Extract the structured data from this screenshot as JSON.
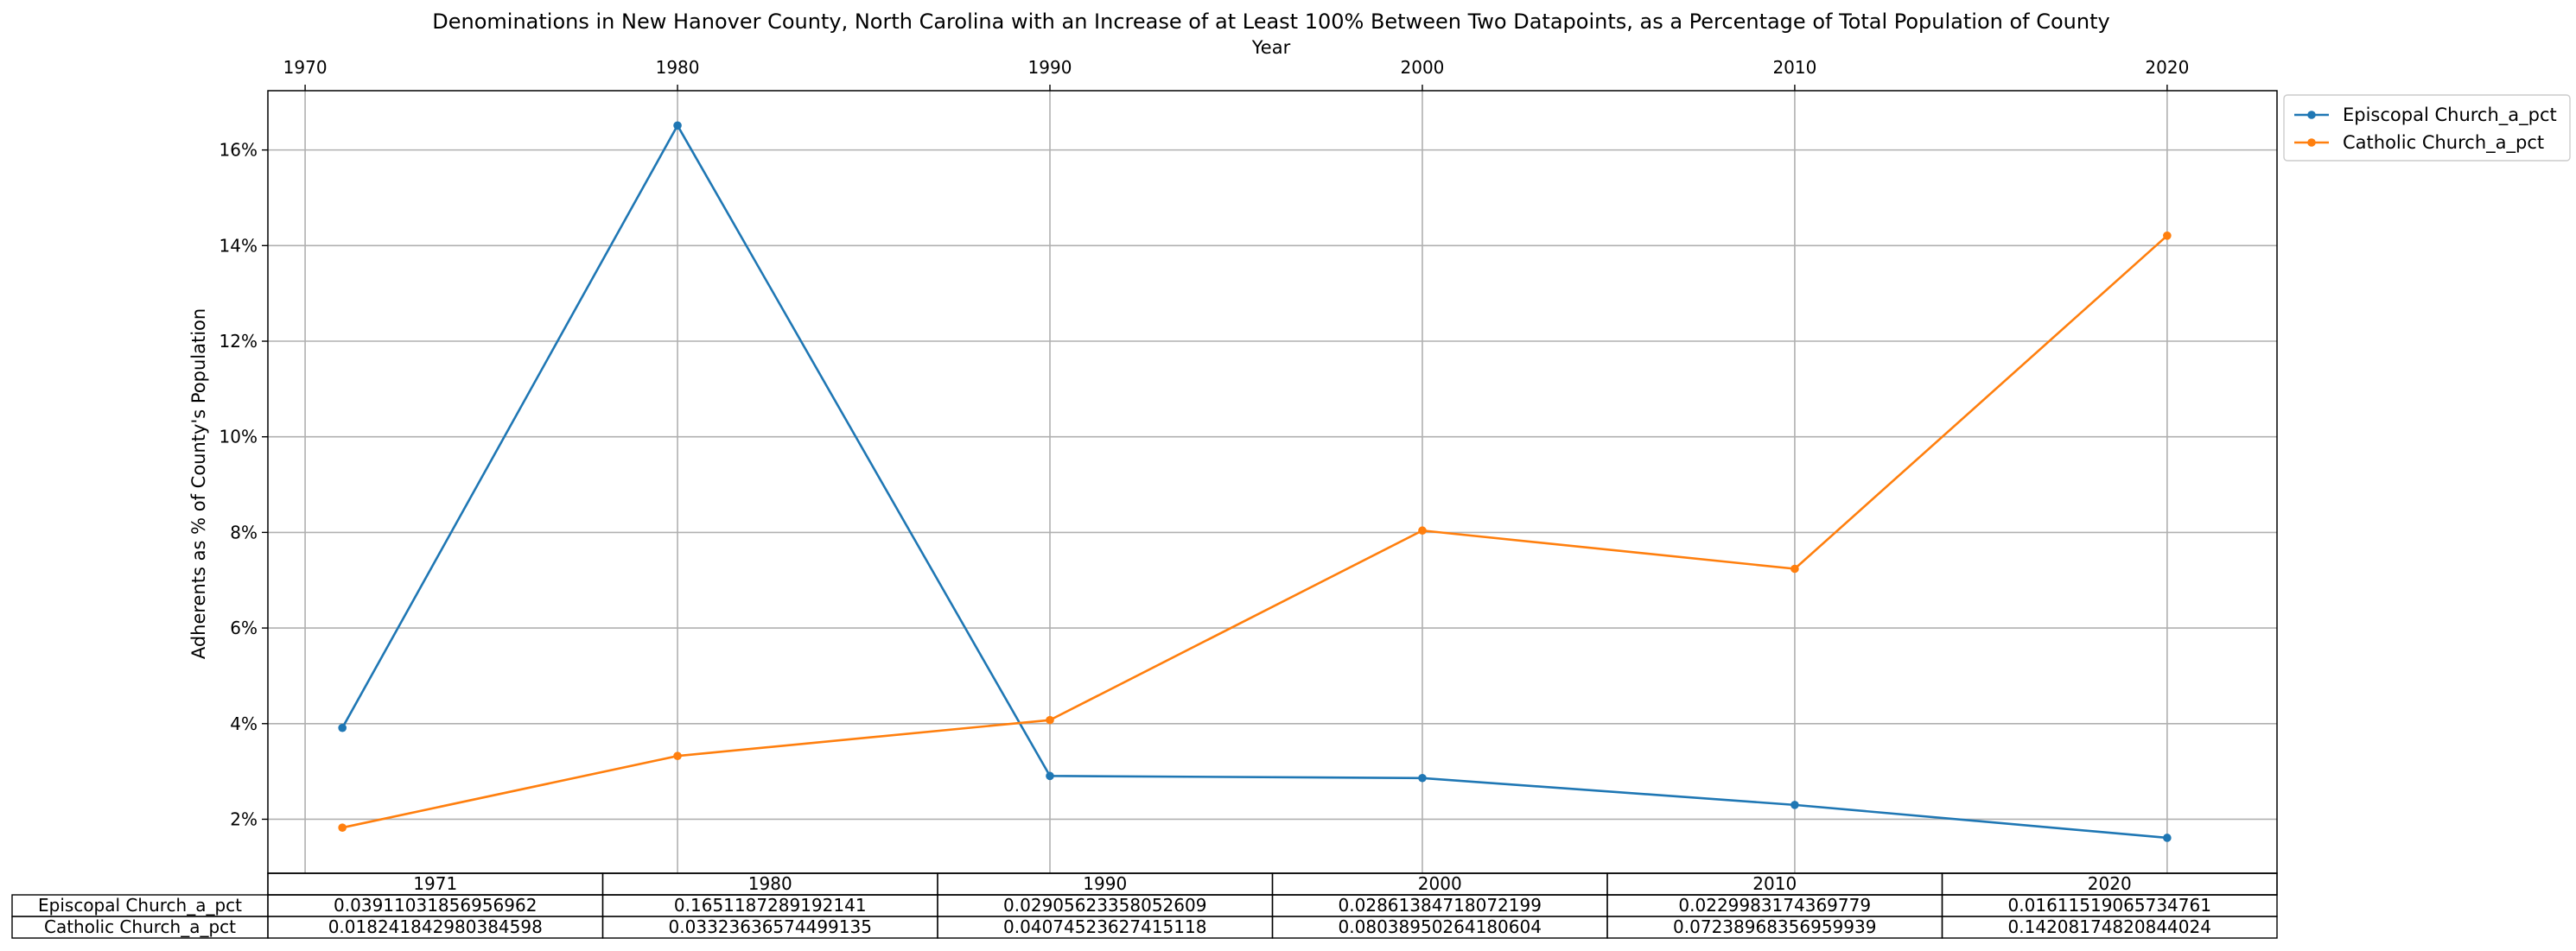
{
  "chart_data": {
    "type": "line",
    "title": "Denominations in New Hanover County, North Carolina with an Increase of at Least 100% Between Two Datapoints, as a Percentage of Total Population of County",
    "xlabel": "Year",
    "ylabel": "Adherents as % of County's Population",
    "x": [
      1971,
      1980,
      1990,
      2000,
      2010,
      2020
    ],
    "xticks": [
      1970,
      1980,
      1990,
      2000,
      2010,
      2020
    ],
    "xlim": [
      1969.0,
      2022.95
    ],
    "ylim": [
      0.0087,
      0.1724
    ],
    "yticks": [
      0.02,
      0.04,
      0.06,
      0.08,
      0.1,
      0.12,
      0.14,
      0.16
    ],
    "ytick_labels": [
      "2%",
      "4%",
      "6%",
      "8%",
      "10%",
      "12%",
      "14%",
      "16%"
    ],
    "grid": true,
    "legend_position": "outside-top-right",
    "series": [
      {
        "name": "Episcopal Church_a_pct",
        "color": "#1f77b4",
        "values": [
          0.03911031856956962,
          0.1651187289192141,
          0.02905623358052609,
          0.02861384718072199,
          0.0229983174369779,
          0.01611519065734761
        ],
        "table_values": [
          "0.03911031856956962",
          "0.1651187289192141",
          "0.02905623358052609",
          "0.02861384718072199",
          "0.0229983174369779",
          "0.01611519065734761"
        ]
      },
      {
        "name": "Catholic Church_a_pct",
        "color": "#ff7f0e",
        "values": [
          0.018241842980384598,
          0.03323636574499135,
          0.04074523627415118,
          0.08038950264180604,
          0.07238968356959939,
          0.14208174820844024
        ],
        "table_values": [
          "0.018241842980384598",
          "0.03323636574499135",
          "0.04074523627415118",
          "0.08038950264180604",
          "0.07238968356959939",
          "0.14208174820844024"
        ]
      }
    ],
    "table": {
      "columns": [
        "1971",
        "1980",
        "1990",
        "2000",
        "2010",
        "2020"
      ]
    }
  }
}
